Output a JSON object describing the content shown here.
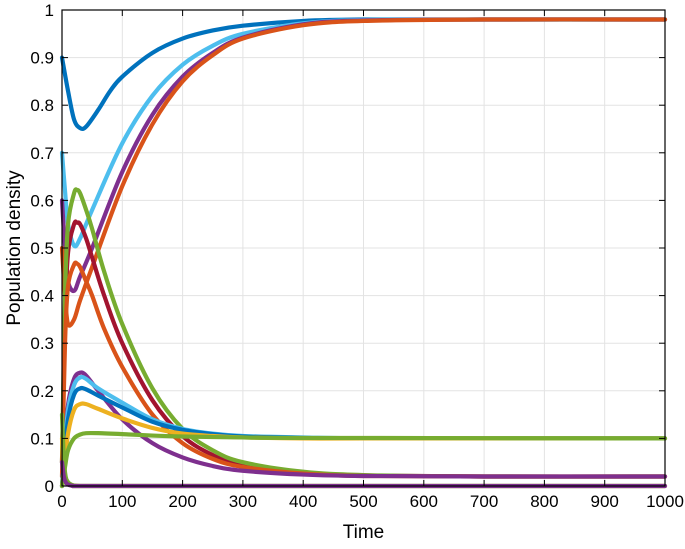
{
  "chart_data": {
    "type": "line",
    "title": "",
    "xlabel": "Time",
    "ylabel": "Population  density",
    "xlim": [
      0,
      1000
    ],
    "ylim": [
      0,
      1
    ],
    "xticks": [
      0,
      100,
      200,
      300,
      400,
      500,
      600,
      700,
      800,
      900,
      1000
    ],
    "yticks": [
      0,
      0.1,
      0.2,
      0.3,
      0.4,
      0.5,
      0.6,
      0.7,
      0.8,
      0.9,
      1
    ],
    "xtick_labels": [
      "0",
      "100",
      "200",
      "300",
      "400",
      "500",
      "600",
      "700",
      "800",
      "900",
      "1000"
    ],
    "ytick_labels": [
      "0",
      "0.1",
      "0.2",
      "0.3",
      "0.4",
      "0.5",
      "0.6",
      "0.7",
      "0.8",
      "0.9",
      "1"
    ],
    "grid": true,
    "legend": "none",
    "series": [
      {
        "color": "#0072BD",
        "x": [
          0,
          10,
          20,
          30,
          40,
          60,
          80,
          100,
          150,
          200,
          250,
          300,
          400,
          500,
          700,
          1000
        ],
        "y": [
          0.9,
          0.83,
          0.77,
          0.752,
          0.755,
          0.79,
          0.83,
          0.86,
          0.91,
          0.94,
          0.957,
          0.967,
          0.977,
          0.98,
          0.98,
          0.98
        ]
      },
      {
        "color": "#4DBEEE",
        "x": [
          0,
          5,
          10,
          20,
          30,
          50,
          100,
          150,
          200,
          250,
          300,
          400,
          500,
          700,
          1000
        ],
        "y": [
          0.7,
          0.62,
          0.55,
          0.505,
          0.52,
          0.58,
          0.72,
          0.82,
          0.885,
          0.925,
          0.95,
          0.972,
          0.979,
          0.98,
          0.98
        ]
      },
      {
        "color": "#7E2F8E",
        "x": [
          0,
          5,
          10,
          20,
          30,
          50,
          100,
          150,
          200,
          250,
          300,
          400,
          500,
          700,
          1000
        ],
        "y": [
          0.6,
          0.5,
          0.43,
          0.41,
          0.44,
          0.5,
          0.66,
          0.78,
          0.86,
          0.91,
          0.942,
          0.97,
          0.978,
          0.98,
          0.98
        ]
      },
      {
        "color": "#D95319",
        "x": [
          0,
          5,
          10,
          20,
          30,
          50,
          100,
          150,
          200,
          250,
          300,
          400,
          500,
          700,
          1000
        ],
        "y": [
          0.5,
          0.4,
          0.34,
          0.35,
          0.39,
          0.46,
          0.63,
          0.76,
          0.85,
          0.905,
          0.94,
          0.968,
          0.977,
          0.98,
          0.98
        ]
      },
      {
        "color": "#A2142F",
        "x": [
          0,
          5,
          10,
          20,
          25,
          30,
          40,
          50,
          70,
          100,
          150,
          200,
          250,
          300,
          400,
          500,
          700,
          1000
        ],
        "y": [
          0.05,
          0.35,
          0.49,
          0.55,
          0.553,
          0.55,
          0.52,
          0.48,
          0.4,
          0.3,
          0.18,
          0.105,
          0.065,
          0.043,
          0.027,
          0.022,
          0.02,
          0.02
        ]
      },
      {
        "color": "#77AC30",
        "x": [
          0,
          5,
          10,
          20,
          25,
          30,
          40,
          50,
          70,
          100,
          150,
          200,
          250,
          300,
          400,
          500,
          700,
          1000
        ],
        "y": [
          0.05,
          0.4,
          0.55,
          0.615,
          0.622,
          0.615,
          0.58,
          0.54,
          0.45,
          0.34,
          0.205,
          0.12,
          0.075,
          0.05,
          0.03,
          0.023,
          0.02,
          0.02
        ]
      },
      {
        "color": "#D95319",
        "x": [
          0,
          5,
          10,
          20,
          25,
          30,
          40,
          50,
          70,
          100,
          150,
          200,
          250,
          300,
          400,
          500,
          700,
          1000
        ],
        "y": [
          0.02,
          0.3,
          0.42,
          0.465,
          0.467,
          0.46,
          0.43,
          0.4,
          0.33,
          0.25,
          0.15,
          0.09,
          0.057,
          0.04,
          0.026,
          0.021,
          0.02,
          0.02
        ]
      },
      {
        "color": "#7E2F8E",
        "x": [
          0,
          5,
          10,
          20,
          30,
          40,
          60,
          100,
          150,
          200,
          250,
          300,
          400,
          500,
          700,
          1000
        ],
        "y": [
          0.0,
          0.08,
          0.17,
          0.225,
          0.238,
          0.232,
          0.2,
          0.14,
          0.09,
          0.06,
          0.042,
          0.032,
          0.024,
          0.021,
          0.02,
          0.02
        ]
      },
      {
        "color": "#4DBEEE",
        "x": [
          0,
          5,
          10,
          20,
          30,
          40,
          60,
          100,
          150,
          200,
          250,
          300,
          400,
          500,
          700,
          1000
        ],
        "y": [
          0.0,
          0.08,
          0.16,
          0.212,
          0.228,
          0.225,
          0.205,
          0.175,
          0.14,
          0.12,
          0.11,
          0.105,
          0.102,
          0.1,
          0.1,
          0.1
        ]
      },
      {
        "color": "#0072BD",
        "x": [
          0,
          5,
          10,
          20,
          30,
          40,
          60,
          100,
          150,
          200,
          250,
          300,
          400,
          500,
          700,
          1000
        ],
        "y": [
          0.0,
          0.07,
          0.14,
          0.192,
          0.205,
          0.203,
          0.19,
          0.165,
          0.135,
          0.118,
          0.109,
          0.104,
          0.101,
          0.1,
          0.1,
          0.1
        ]
      },
      {
        "color": "#EDB120",
        "x": [
          0,
          5,
          10,
          20,
          30,
          40,
          60,
          100,
          150,
          200,
          250,
          300,
          400,
          500,
          700,
          1000
        ],
        "y": [
          0.0,
          0.05,
          0.11,
          0.16,
          0.172,
          0.172,
          0.162,
          0.142,
          0.122,
          0.11,
          0.105,
          0.102,
          0.1,
          0.1,
          0.1,
          0.1
        ]
      },
      {
        "color": "#77AC30",
        "x": [
          0,
          5,
          10,
          20,
          30,
          40,
          60,
          100,
          150,
          200,
          300,
          400,
          1000
        ],
        "y": [
          0.0,
          0.04,
          0.075,
          0.1,
          0.108,
          0.111,
          0.111,
          0.109,
          0.106,
          0.104,
          0.102,
          0.101,
          0.1
        ]
      },
      {
        "color": "#EDB120",
        "x": [
          0,
          3,
          6,
          10,
          15,
          20,
          30,
          50,
          100,
          1000
        ],
        "y": [
          0.1,
          0.04,
          0.015,
          0.006,
          0.003,
          0.001,
          0.0,
          0.0,
          0.0,
          0.0
        ]
      },
      {
        "color": "#77AC30",
        "x": [
          0,
          3,
          6,
          10,
          15,
          20,
          30,
          50,
          100,
          1000
        ],
        "y": [
          0.15,
          0.06,
          0.02,
          0.008,
          0.003,
          0.001,
          0.0,
          0.0,
          0.0,
          0.0
        ]
      },
      {
        "color": "#7E2F8E",
        "x": [
          0,
          3,
          6,
          10,
          15,
          20,
          30,
          50,
          100,
          1000
        ],
        "y": [
          0.05,
          0.02,
          0.008,
          0.003,
          0.001,
          0.0,
          0.0,
          0.0,
          0.0,
          0.0
        ]
      }
    ]
  }
}
